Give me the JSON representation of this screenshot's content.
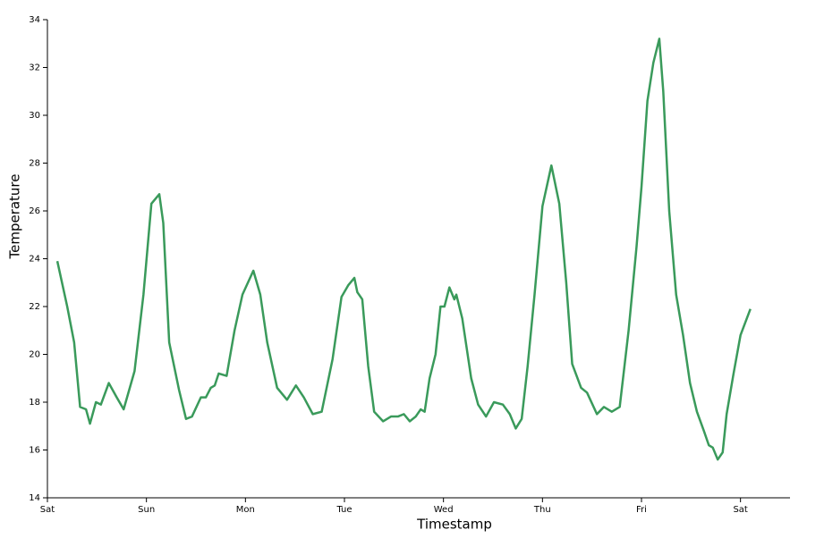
{
  "chart_data": {
    "type": "line",
    "x_label": "Timestamp",
    "y_label": "Temperature",
    "x": [
      0.1,
      0.2,
      0.27,
      0.33,
      0.39,
      0.43,
      0.49,
      0.54,
      0.62,
      0.7,
      0.77,
      0.88,
      0.97,
      1.05,
      1.13,
      1.17,
      1.23,
      1.33,
      1.4,
      1.46,
      1.55,
      1.6,
      1.65,
      1.69,
      1.73,
      1.81,
      1.89,
      1.97,
      2.08,
      2.15,
      2.22,
      2.32,
      2.42,
      2.51,
      2.59,
      2.68,
      2.77,
      2.88,
      2.97,
      3.04,
      3.1,
      3.13,
      3.18,
      3.24,
      3.3,
      3.39,
      3.47,
      3.54,
      3.6,
      3.66,
      3.72,
      3.77,
      3.81,
      3.86,
      3.92,
      3.97,
      4.01,
      4.06,
      4.11,
      4.13,
      4.19,
      4.28,
      4.35,
      4.43,
      4.51,
      4.6,
      4.67,
      4.73,
      4.79,
      4.85,
      4.92,
      5.0,
      5.09,
      5.17,
      5.24,
      5.3,
      5.39,
      5.45,
      5.55,
      5.62,
      5.7,
      5.78,
      5.87,
      5.95,
      6.0,
      6.06,
      6.12,
      6.18,
      6.22,
      6.28,
      6.35,
      6.42,
      6.49,
      6.56,
      6.63,
      6.68,
      6.72,
      6.77,
      6.82,
      6.86,
      6.93,
      7.0,
      7.1
    ],
    "series": [
      {
        "color": "#3a9a5b",
        "values": [
          23.9,
          22.0,
          20.5,
          17.8,
          17.7,
          17.1,
          18.0,
          17.9,
          18.8,
          18.2,
          17.7,
          19.3,
          22.5,
          26.3,
          26.7,
          25.5,
          20.5,
          18.5,
          17.3,
          17.4,
          18.2,
          18.2,
          18.6,
          18.7,
          19.2,
          19.1,
          21.0,
          22.5,
          23.5,
          22.5,
          20.5,
          18.6,
          18.1,
          18.7,
          18.2,
          17.5,
          17.6,
          19.8,
          22.4,
          22.9,
          23.2,
          22.6,
          22.3,
          19.5,
          17.6,
          17.2,
          17.4,
          17.4,
          17.5,
          17.2,
          17.4,
          17.7,
          17.6,
          19.0,
          20.0,
          22.0,
          22.0,
          22.8,
          22.3,
          22.5,
          21.5,
          19.0,
          17.9,
          17.4,
          18.0,
          17.9,
          17.5,
          16.9,
          17.3,
          19.5,
          22.5,
          26.2,
          27.9,
          26.3,
          23.0,
          19.6,
          18.6,
          18.4,
          17.5,
          17.8,
          17.6,
          17.8,
          21.0,
          24.5,
          27.0,
          30.6,
          32.2,
          33.2,
          31.0,
          26.0,
          22.5,
          20.8,
          18.8,
          17.6,
          16.8,
          16.2,
          16.1,
          15.6,
          15.9,
          17.5,
          19.2,
          20.8,
          21.9
        ]
      }
    ],
    "xlim": [
      0,
      7.5
    ],
    "xticks": [
      {
        "value": 0,
        "label": "Sat"
      },
      {
        "value": 1,
        "label": "Sun"
      },
      {
        "value": 2,
        "label": "Mon"
      },
      {
        "value": 3,
        "label": "Tue"
      },
      {
        "value": 4,
        "label": "Wed"
      },
      {
        "value": 5,
        "label": "Thu"
      },
      {
        "value": 6,
        "label": "Fri"
      },
      {
        "value": 7,
        "label": "Sat"
      }
    ],
    "ylim": [
      14,
      34
    ],
    "yticks": [
      14,
      16,
      18,
      20,
      22,
      24,
      26,
      28,
      30,
      32,
      34
    ]
  }
}
